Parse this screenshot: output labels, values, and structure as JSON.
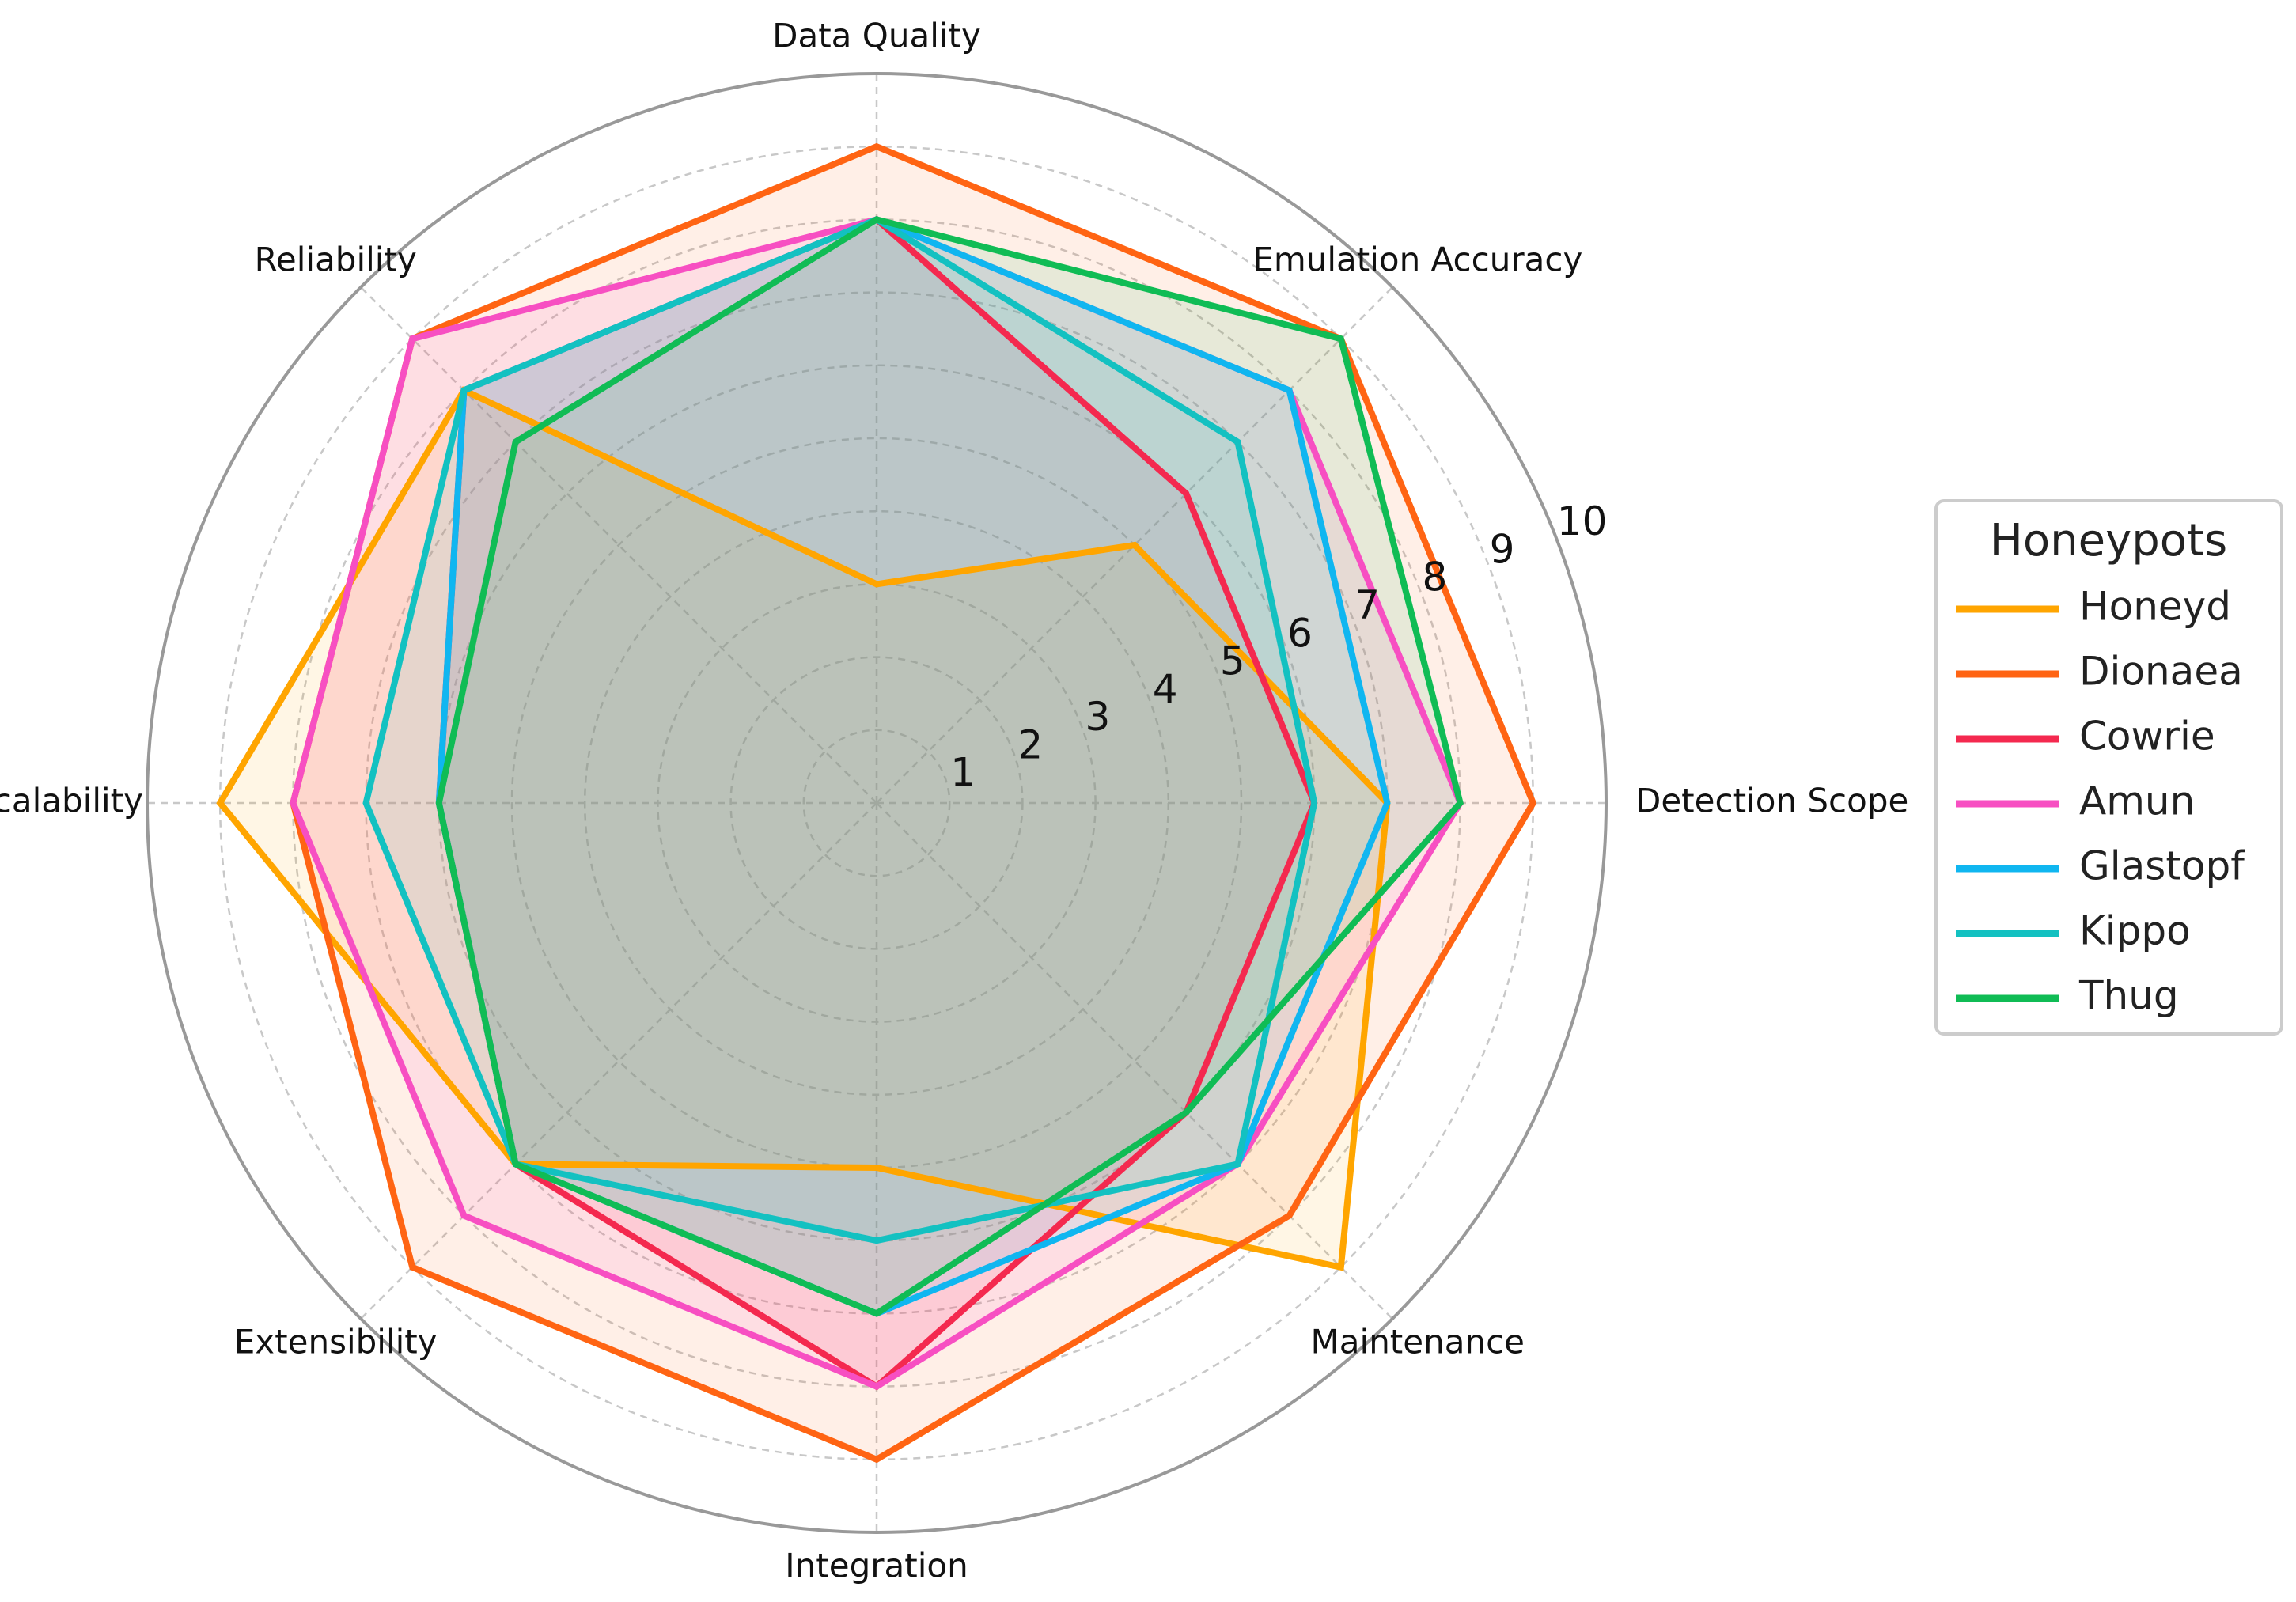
{
  "chart_data": {
    "type": "radar",
    "title": "",
    "categories": [
      "Detection Scope",
      "Emulation Accuracy",
      "Data Quality",
      "Reliability",
      "Scalability",
      "Extensibility",
      "Integration",
      "Maintenance"
    ],
    "rlim": [
      0,
      10
    ],
    "rticks": [
      "1",
      "2",
      "3",
      "4",
      "5",
      "6",
      "7",
      "8",
      "9",
      "10"
    ],
    "grid": true,
    "legend": {
      "title": "Honeypots",
      "position": "right"
    },
    "series": [
      {
        "name": "Honeyd",
        "color": "#FFA500",
        "values": [
          7,
          5,
          3,
          8,
          9,
          7,
          5,
          9
        ]
      },
      {
        "name": "Dionaea",
        "color": "#FF6413",
        "values": [
          9,
          9,
          9,
          9,
          8,
          9,
          9,
          8
        ]
      },
      {
        "name": "Cowrie",
        "color": "#F4294F",
        "values": [
          6,
          6,
          8,
          8,
          6,
          7,
          8,
          6
        ]
      },
      {
        "name": "Amun",
        "color": "#F74FC2",
        "values": [
          8,
          8,
          8,
          9,
          8,
          8,
          8,
          7
        ]
      },
      {
        "name": "Glastopf",
        "color": "#10B6F0",
        "values": [
          7,
          8,
          8,
          8,
          6,
          7,
          7,
          7
        ]
      },
      {
        "name": "Kippo",
        "color": "#13C1C1",
        "values": [
          6,
          7,
          8,
          8,
          7,
          7,
          6,
          7
        ]
      },
      {
        "name": "Thug",
        "color": "#10BC55",
        "values": [
          8,
          9,
          8,
          7,
          6,
          7,
          7,
          6
        ]
      }
    ]
  }
}
